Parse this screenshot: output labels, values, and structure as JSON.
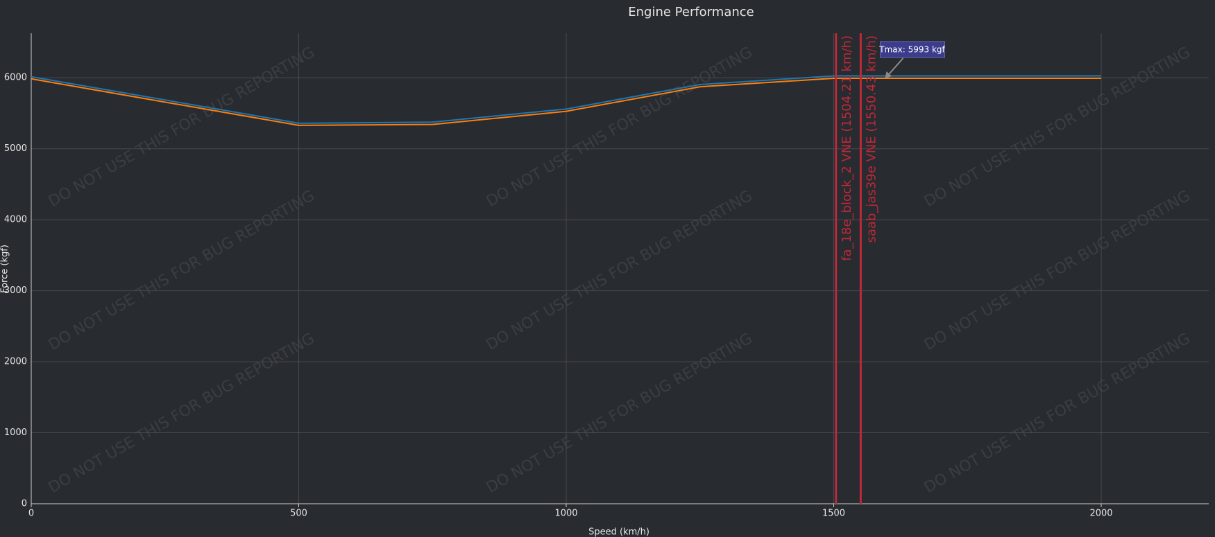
{
  "chart_data": {
    "type": "line",
    "title": "Engine Performance",
    "x_label": "Speed (km/h)",
    "y_label": "Force (kgf)",
    "watermark": "DO NOT USE THIS FOR BUG REPORTING",
    "x": [
      0,
      500,
      750,
      1000,
      1250,
      1500,
      2000
    ],
    "series": [
      {
        "color": "#1f77b4",
        "values": [
          6015,
          5360,
          5375,
          5560,
          5905,
          6027,
          6027
        ]
      },
      {
        "color": "#ff7f0e",
        "values": [
          5985,
          5330,
          5342,
          5528,
          5873,
          5993,
          5993
        ]
      }
    ],
    "vlines": [
      {
        "x": 1504.21,
        "label": "fa_18e_block_2 VNE (1504.21 km/h)",
        "color": "#c0283a"
      },
      {
        "x": 1550.43,
        "label": "saab_jas39e VNE (1550.43 km/h)",
        "color": "#c0283a"
      }
    ],
    "annotation": {
      "x": 1596,
      "y": 5993,
      "text": "Tmax: 5993 kgf"
    },
    "xlim": [
      0,
      2201
    ],
    "ylim": [
      0,
      6627
    ],
    "xticks": [
      0,
      500,
      1000,
      1500,
      2000
    ],
    "yticks": [
      0,
      1000,
      2000,
      3000,
      4000,
      5000,
      6000
    ],
    "grid": true
  }
}
